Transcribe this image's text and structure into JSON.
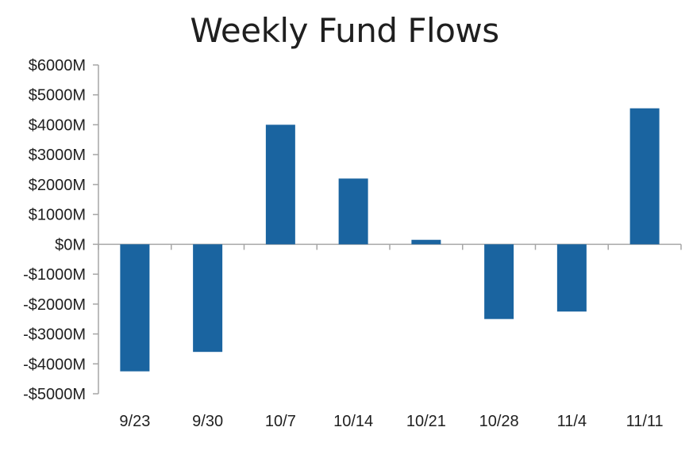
{
  "chart_data": {
    "type": "bar",
    "title": "Weekly Fund Flows",
    "xlabel": "",
    "ylabel": "",
    "categories": [
      "9/23",
      "9/30",
      "10/7",
      "10/14",
      "10/21",
      "10/28",
      "11/4",
      "11/11"
    ],
    "values": [
      -4250,
      -3600,
      4000,
      2200,
      150,
      -2500,
      -2250,
      4550
    ],
    "ylim": [
      -5000,
      6000
    ],
    "yticks": [
      6000,
      5000,
      4000,
      3000,
      2000,
      1000,
      0,
      -1000,
      -2000,
      -3000,
      -4000,
      -5000
    ],
    "ytick_labels": [
      "$6000M",
      "$5000M",
      "$4000M",
      "$3000M",
      "$2000M",
      "$1000M",
      "$0M",
      "-$1000M",
      "-$2000M",
      "-$3000M",
      "-$4000M",
      "-$5000M"
    ],
    "grid": false,
    "legend": "none",
    "bar_color": "#1a64a0",
    "axis_color": "#a6a6a6"
  }
}
